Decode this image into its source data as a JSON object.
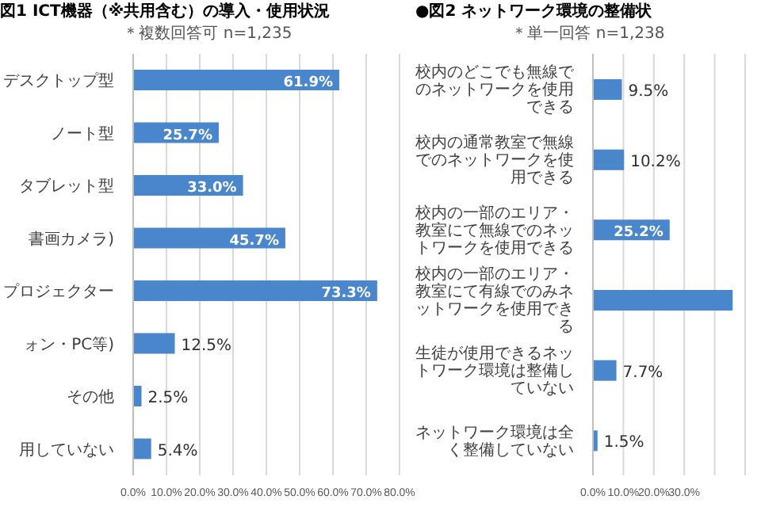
{
  "chart_data": [
    {
      "type": "bar",
      "orientation": "horizontal",
      "title": "図1 ICT機器（※共用含む）の導入・使用状況",
      "subtitle": "＊複数回答可 n=1,235",
      "categories": [
        "デスクトップ型",
        "ノート型",
        "タブレット型",
        "書画カメラ)",
        "プロジェクター",
        "ォン・PC等)",
        "その他",
        "用していない"
      ],
      "values": [
        61.9,
        25.7,
        33.0,
        45.7,
        73.3,
        12.5,
        2.5,
        5.4
      ],
      "value_labels": [
        "61.9%",
        "25.7%",
        "33.0%",
        "45.7%",
        "73.3%",
        "12.5%",
        "2.5%",
        "5.4%"
      ],
      "color": "#4a86cc",
      "xlim": [
        0,
        80
      ],
      "xticks": [
        {
          "value": 0,
          "label": "0.0%"
        },
        {
          "value": 10,
          "label": "10.0%"
        },
        {
          "value": 20,
          "label": "20.0%"
        },
        {
          "value": 30,
          "label": "30.0%"
        },
        {
          "value": 40,
          "label": "40.0%"
        },
        {
          "value": 50,
          "label": "50.0%"
        },
        {
          "value": 60,
          "label": "60.0%"
        },
        {
          "value": 70,
          "label": "70.0%"
        },
        {
          "value": 80,
          "label": "80.0%"
        }
      ],
      "grid": "x",
      "legend": false
    },
    {
      "type": "bar",
      "orientation": "horizontal",
      "title": "●図2 ネットワーク環境の整備状",
      "subtitle": "＊単一回答 n=1,238",
      "categories": [
        "校内のどこでも無線でのネットワークを使用できる",
        "校内の通常教室で無線でのネットワークを使用できる",
        "校内の一部のエリア・教室にて無線でのネットワークを使用できる",
        "校内の一部のエリア・教室にて有線でのみネットワークを使用できる",
        "生徒が使用できるネットワーク環境は整備していない",
        "ネットワーク環境は全く整備していない"
      ],
      "values": [
        9.5,
        10.2,
        25.2,
        45.9,
        7.7,
        1.5
      ],
      "value_labels": [
        "9.5%",
        "10.2%",
        "25.2%",
        null,
        "7.7%",
        "1.5%"
      ],
      "color": "#4a86cc",
      "xlim": [
        0,
        50
      ],
      "xticks": [
        {
          "value": 0,
          "label": "0.0%"
        },
        {
          "value": 10,
          "label": "10.0%"
        },
        {
          "value": 20,
          "label": "20.0%"
        },
        {
          "value": 30,
          "label": "30.0%"
        },
        {
          "value": 40,
          "label": null
        },
        {
          "value": 50,
          "label": null
        }
      ],
      "grid": "x",
      "legend": false
    }
  ]
}
